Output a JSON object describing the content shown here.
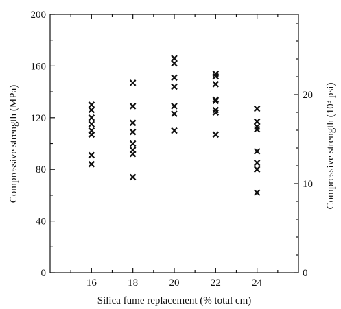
{
  "chart_data": {
    "type": "scatter",
    "marker": "x",
    "xlabel": "Silica fume replacement (% total cm)",
    "ylabel": "Compressive strength (MPa)",
    "y2label": "Compressive strength (10³ psi)",
    "xticks": [
      16,
      18,
      20,
      22,
      24
    ],
    "xlim": [
      14,
      26
    ],
    "yticks": [
      0,
      40,
      80,
      120,
      160,
      200
    ],
    "ylim": [
      0,
      200
    ],
    "y2ticks": [
      0,
      10,
      20
    ],
    "y2lim": [
      0,
      29.0
    ],
    "grid": false,
    "series": [
      {
        "points": [
          {
            "x": 16,
            "y": 84
          },
          {
            "x": 16,
            "y": 91
          },
          {
            "x": 16,
            "y": 107
          },
          {
            "x": 16,
            "y": 110
          },
          {
            "x": 16,
            "y": 115
          },
          {
            "x": 16,
            "y": 120
          },
          {
            "x": 16,
            "y": 126
          },
          {
            "x": 16,
            "y": 130
          },
          {
            "x": 18,
            "y": 74
          },
          {
            "x": 18,
            "y": 92
          },
          {
            "x": 18,
            "y": 95
          },
          {
            "x": 18,
            "y": 100
          },
          {
            "x": 18,
            "y": 109
          },
          {
            "x": 18,
            "y": 116
          },
          {
            "x": 18,
            "y": 129
          },
          {
            "x": 18,
            "y": 147
          },
          {
            "x": 20,
            "y": 110
          },
          {
            "x": 20,
            "y": 123
          },
          {
            "x": 20,
            "y": 129
          },
          {
            "x": 20,
            "y": 144
          },
          {
            "x": 20,
            "y": 151
          },
          {
            "x": 20,
            "y": 162
          },
          {
            "x": 20,
            "y": 166
          },
          {
            "x": 22,
            "y": 107
          },
          {
            "x": 22,
            "y": 124
          },
          {
            "x": 22,
            "y": 126
          },
          {
            "x": 22,
            "y": 133
          },
          {
            "x": 22,
            "y": 134
          },
          {
            "x": 22,
            "y": 146
          },
          {
            "x": 22,
            "y": 152
          },
          {
            "x": 22,
            "y": 154
          },
          {
            "x": 24,
            "y": 62
          },
          {
            "x": 24,
            "y": 80
          },
          {
            "x": 24,
            "y": 85
          },
          {
            "x": 24,
            "y": 94
          },
          {
            "x": 24,
            "y": 111
          },
          {
            "x": 24,
            "y": 113
          },
          {
            "x": 24,
            "y": 117
          },
          {
            "x": 24,
            "y": 127
          }
        ]
      }
    ]
  }
}
